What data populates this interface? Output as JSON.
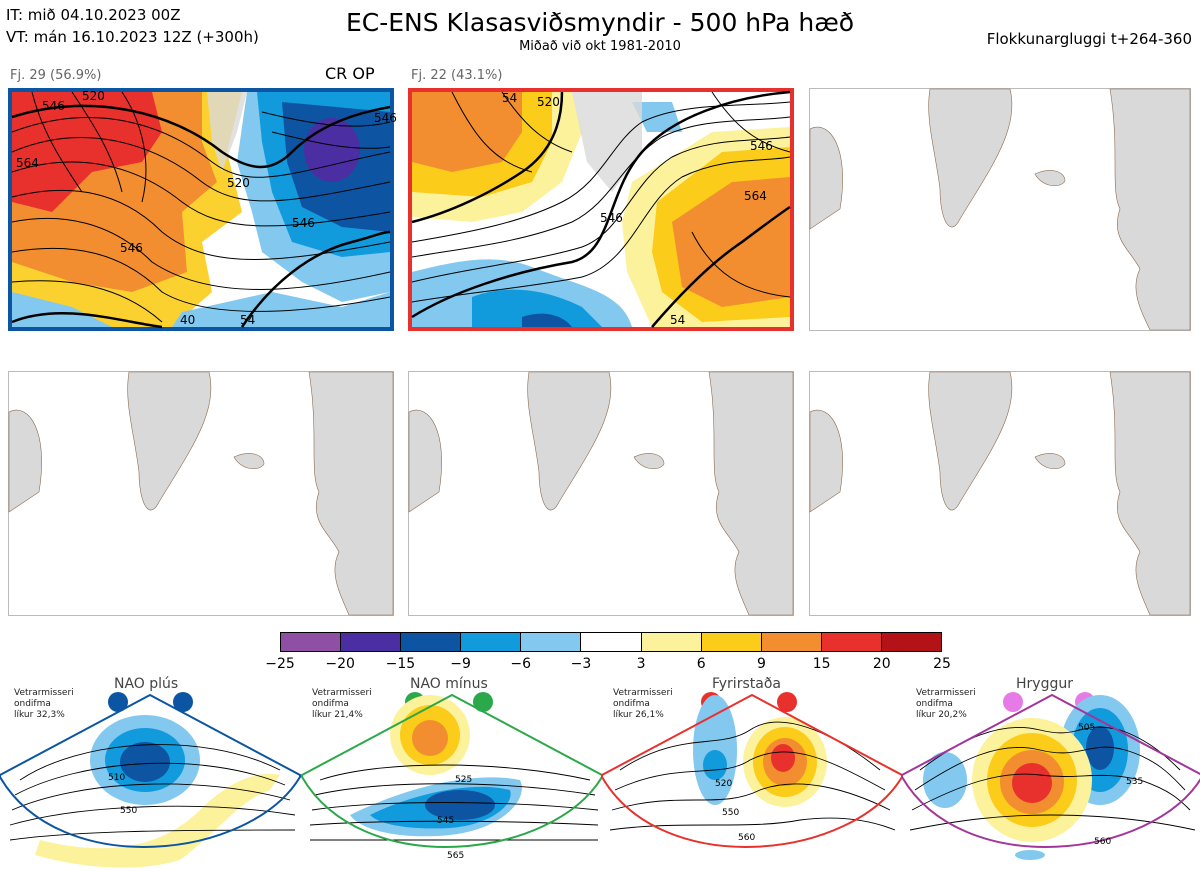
{
  "header": {
    "it_line": "IT: mið 04.10.2023 00Z",
    "vt_line": "VT: mán 16.10.2023 12Z  (+300h)",
    "title": "EC-ENS Klasasviðsmyndir - 500 hPa hæð",
    "subtitle": "Miðað við okt 1981-2010",
    "window": "Flokkunargluggi t+264-360"
  },
  "clusters": [
    {
      "label": "Fj. 29 (56.9%)",
      "tag": "CR OP",
      "border_color": "#0b55a2",
      "contour_labels": [
        "546",
        "520",
        "564",
        "520",
        "546",
        "546",
        "546",
        "40",
        "54"
      ]
    },
    {
      "label": "Fj. 22 (43.1%)",
      "tag": "",
      "border_color": "#e8312c",
      "contour_labels": [
        "54",
        "520",
        "546",
        "546",
        "564",
        "54"
      ]
    }
  ],
  "colorbar": {
    "colors": [
      "#8e4fa5",
      "#4b2ea2",
      "#0d55a3",
      "#119bdd",
      "#82c8ef",
      "#ffffff",
      "#fdf29c",
      "#fbcc1a",
      "#f28e2f",
      "#e8312c",
      "#b31317"
    ],
    "ticks": [
      "−25",
      "−20",
      "−15",
      "−9",
      "−6",
      "−3",
      "3",
      "6",
      "9",
      "15",
      "20",
      "25"
    ]
  },
  "regimes": [
    {
      "name": "NAO plús",
      "note_l1": "Vetrarmisseri",
      "note_l2": "ondifma",
      "note_l3": "líkur 32,3%",
      "color": "#0b55a2",
      "labels": [
        "510",
        "550"
      ]
    },
    {
      "name": "NAO mínus",
      "note_l1": "Vetrarmisseri",
      "note_l2": "ondifma",
      "note_l3": "líkur 21,4%",
      "color": "#2ba84a",
      "labels": [
        "525",
        "545",
        "565"
      ]
    },
    {
      "name": "Fyrirstaða",
      "note_l1": "Vetrarmisseri",
      "note_l2": "ondifma",
      "note_l3": "líkur 26,1%",
      "color": "#e8312c",
      "labels": [
        "520",
        "550",
        "560"
      ]
    },
    {
      "name": "Hryggur",
      "note_l1": "Vetrarmisseri",
      "note_l2": "ondifma",
      "note_l3": "líkur 20,2%",
      "color": "#a2359a",
      "labels": [
        "505",
        "535",
        "560"
      ]
    }
  ]
}
